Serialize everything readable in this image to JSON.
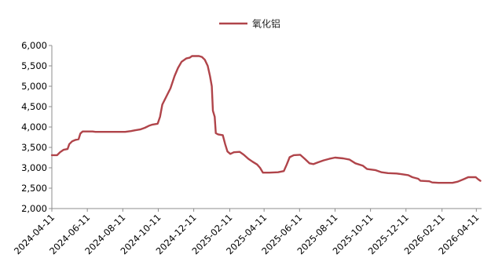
{
  "chart_data": {
    "type": "line",
    "legend": {
      "placement": "top-center"
    },
    "grid": false,
    "xlabel": "",
    "ylabel": "",
    "ylim": [
      2000,
      6000
    ],
    "yticks": [
      2000,
      2500,
      3000,
      3500,
      4000,
      4500,
      5000,
      5500,
      6000
    ],
    "ytick_labels": [
      "2,000",
      "2,500",
      "3,000",
      "3,500",
      "4,000",
      "4,500",
      "5,000",
      "5,500",
      "6,000"
    ],
    "xlim": [
      "2024-04-11",
      "2026-04-20"
    ],
    "xticks": [
      "2024-04-11",
      "2024-06-11",
      "2024-08-11",
      "2024-10-11",
      "2024-12-11",
      "2025-02-11",
      "2025-04-11",
      "2025-06-11",
      "2025-08-11",
      "2025-10-11",
      "2025-12-11",
      "2026-02-11",
      "2026-04-11"
    ],
    "series": [
      {
        "name": "氧化铝",
        "color": "#b0444a",
        "points": [
          [
            "2024-04-11",
            3310
          ],
          [
            "2024-04-20",
            3310
          ],
          [
            "2024-04-25",
            3380
          ],
          [
            "2024-05-01",
            3440
          ],
          [
            "2024-05-08",
            3460
          ],
          [
            "2024-05-11",
            3580
          ],
          [
            "2024-05-16",
            3650
          ],
          [
            "2024-05-21",
            3680
          ],
          [
            "2024-05-27",
            3700
          ],
          [
            "2024-05-30",
            3840
          ],
          [
            "2024-06-03",
            3890
          ],
          [
            "2024-06-20",
            3890
          ],
          [
            "2024-06-25",
            3880
          ],
          [
            "2024-07-15",
            3880
          ],
          [
            "2024-08-15",
            3880
          ],
          [
            "2024-08-25",
            3900
          ],
          [
            "2024-09-01",
            3920
          ],
          [
            "2024-09-10",
            3940
          ],
          [
            "2024-09-18",
            3980
          ],
          [
            "2024-09-25",
            4030
          ],
          [
            "2024-10-01",
            4060
          ],
          [
            "2024-10-10",
            4080
          ],
          [
            "2024-10-14",
            4250
          ],
          [
            "2024-10-18",
            4550
          ],
          [
            "2024-10-25",
            4750
          ],
          [
            "2024-11-01",
            4950
          ],
          [
            "2024-11-08",
            5250
          ],
          [
            "2024-11-14",
            5450
          ],
          [
            "2024-11-20",
            5600
          ],
          [
            "2024-11-28",
            5680
          ],
          [
            "2024-12-04",
            5700
          ],
          [
            "2024-12-08",
            5740
          ],
          [
            "2024-12-20",
            5740
          ],
          [
            "2024-12-25",
            5720
          ],
          [
            "2024-12-30",
            5650
          ],
          [
            "2025-01-04",
            5500
          ],
          [
            "2025-01-08",
            5250
          ],
          [
            "2025-01-11",
            5000
          ],
          [
            "2025-01-13",
            4400
          ],
          [
            "2025-01-16",
            4250
          ],
          [
            "2025-01-18",
            3850
          ],
          [
            "2025-01-22",
            3820
          ],
          [
            "2025-01-30",
            3800
          ],
          [
            "2025-02-03",
            3580
          ],
          [
            "2025-02-07",
            3400
          ],
          [
            "2025-02-12",
            3340
          ],
          [
            "2025-02-18",
            3380
          ],
          [
            "2025-02-28",
            3390
          ],
          [
            "2025-03-07",
            3320
          ],
          [
            "2025-03-15",
            3220
          ],
          [
            "2025-03-22",
            3150
          ],
          [
            "2025-03-30",
            3080
          ],
          [
            "2025-04-04",
            3000
          ],
          [
            "2025-04-09",
            2880
          ],
          [
            "2025-04-20",
            2880
          ],
          [
            "2025-05-05",
            2890
          ],
          [
            "2025-05-15",
            2920
          ],
          [
            "2025-05-20",
            3080
          ],
          [
            "2025-05-25",
            3260
          ],
          [
            "2025-06-01",
            3310
          ],
          [
            "2025-06-12",
            3320
          ],
          [
            "2025-06-20",
            3220
          ],
          [
            "2025-06-28",
            3110
          ],
          [
            "2025-07-05",
            3090
          ],
          [
            "2025-07-12",
            3130
          ],
          [
            "2025-07-22",
            3180
          ],
          [
            "2025-08-01",
            3220
          ],
          [
            "2025-08-11",
            3250
          ],
          [
            "2025-08-25",
            3230
          ],
          [
            "2025-09-05",
            3200
          ],
          [
            "2025-09-15",
            3110
          ],
          [
            "2025-09-28",
            3050
          ],
          [
            "2025-10-05",
            2970
          ],
          [
            "2025-10-20",
            2940
          ],
          [
            "2025-10-30",
            2890
          ],
          [
            "2025-11-10",
            2870
          ],
          [
            "2025-11-25",
            2860
          ],
          [
            "2025-12-05",
            2840
          ],
          [
            "2025-12-15",
            2820
          ],
          [
            "2025-12-22",
            2770
          ],
          [
            "2026-01-01",
            2730
          ],
          [
            "2026-01-05",
            2680
          ],
          [
            "2026-01-20",
            2670
          ],
          [
            "2026-01-25",
            2640
          ],
          [
            "2026-02-05",
            2630
          ],
          [
            "2026-03-01",
            2630
          ],
          [
            "2026-03-10",
            2660
          ],
          [
            "2026-03-20",
            2720
          ],
          [
            "2026-03-28",
            2770
          ],
          [
            "2026-04-10",
            2770
          ],
          [
            "2026-04-14",
            2720
          ],
          [
            "2026-04-18",
            2680
          ]
        ]
      }
    ]
  }
}
